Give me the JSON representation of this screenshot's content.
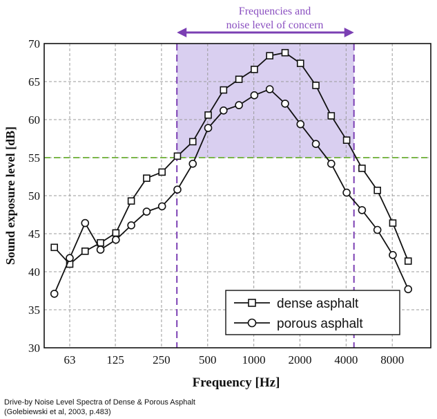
{
  "chart_data": {
    "type": "line",
    "xlabel": "Frequency [Hz]",
    "ylabel": "Sound exposure level  [dB]",
    "ylim": [
      30,
      70
    ],
    "x_axis_scale": "log (one-third octave bands)",
    "x_tick_labels": [
      "63",
      "125",
      "250",
      "500",
      "1000",
      "2000",
      "4000",
      "8000"
    ],
    "y_tick_labels": [
      "30",
      "35",
      "40",
      "45",
      "50",
      "55",
      "60",
      "65",
      "70"
    ],
    "grid": true,
    "legend_position": "bottom-right",
    "x": [
      50,
      63,
      80,
      100,
      125,
      160,
      200,
      250,
      315,
      400,
      500,
      630,
      800,
      1000,
      1250,
      1600,
      2000,
      2500,
      3150,
      4000,
      5000,
      6300,
      8000,
      10000
    ],
    "series": [
      {
        "name": "dense asphalt",
        "marker": "square",
        "values": [
          43.2,
          41.0,
          42.7,
          43.8,
          45.1,
          49.3,
          52.3,
          53.1,
          55.2,
          57.1,
          60.6,
          63.9,
          65.3,
          66.6,
          68.4,
          68.8,
          67.4,
          64.5,
          60.5,
          57.3,
          53.6,
          50.7,
          46.4,
          41.4
        ]
      },
      {
        "name": "porous asphalt",
        "marker": "circle",
        "values": [
          37.1,
          41.8,
          46.4,
          42.9,
          44.2,
          46.1,
          47.9,
          48.6,
          50.8,
          54.2,
          58.9,
          61.2,
          61.9,
          63.2,
          64.0,
          62.1,
          59.4,
          56.8,
          54.2,
          50.4,
          48.1,
          45.5,
          42.2,
          37.7
        ]
      }
    ],
    "annotation": {
      "text_line1": "Frequencies and",
      "text_line2": "noise level of concern",
      "region_from_hz": 315,
      "region_to_hz": 4500,
      "threshold_db": 55,
      "region_color": "#d9cff0",
      "line_color": "#7b3fb3",
      "threshold_color": "#7ab648"
    }
  },
  "caption": {
    "line1": "Drive-by Noise Level Spectra of Dense & Porous Asphalt",
    "line2": "(Golebiewski et al, 2003, p.483)"
  }
}
